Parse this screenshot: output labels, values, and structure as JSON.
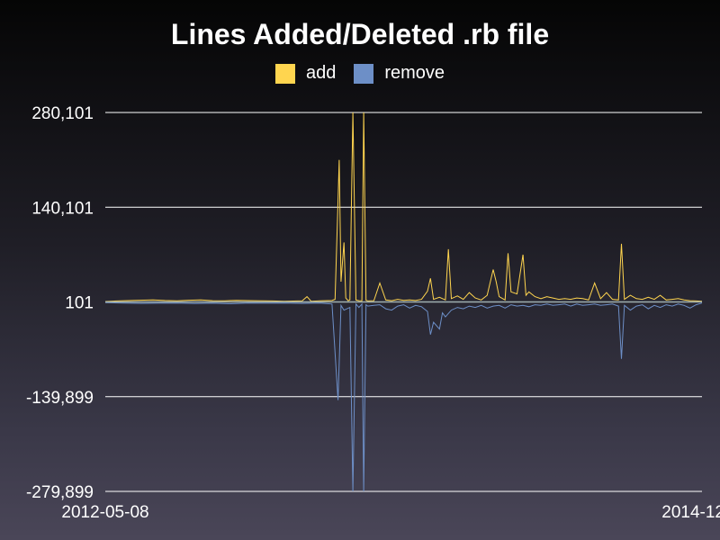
{
  "chart_data": {
    "type": "line",
    "title": "Lines Added/Deleted .rb file",
    "xlabel": "",
    "ylabel": "",
    "x_range": [
      "2012-05-08",
      "2014-12"
    ],
    "x_tick_labels": [
      "2012-05-08",
      "2014-12"
    ],
    "y_ticks": [
      280101,
      140101,
      101,
      -139899,
      -279899
    ],
    "y_tick_labels": [
      "280,101",
      "140,101",
      "101",
      "-139,899",
      "-279,899"
    ],
    "ylim": [
      -279899,
      280101
    ],
    "grid": true,
    "legend_position": "top-center",
    "series": [
      {
        "name": "add",
        "color": "#ffd54f",
        "points": [
          [
            0.0,
            800
          ],
          [
            0.02,
            1500
          ],
          [
            0.05,
            2400
          ],
          [
            0.08,
            3000
          ],
          [
            0.1,
            2200
          ],
          [
            0.12,
            1800
          ],
          [
            0.14,
            2600
          ],
          [
            0.16,
            3200
          ],
          [
            0.18,
            2000
          ],
          [
            0.2,
            1800
          ],
          [
            0.22,
            2500
          ],
          [
            0.25,
            2000
          ],
          [
            0.28,
            1500
          ],
          [
            0.3,
            1200
          ],
          [
            0.33,
            1800
          ],
          [
            0.338,
            8000
          ],
          [
            0.345,
            1200
          ],
          [
            0.36,
            1800
          ],
          [
            0.38,
            2200
          ],
          [
            0.385,
            4000
          ],
          [
            0.39,
            150000
          ],
          [
            0.392,
            210000
          ],
          [
            0.395,
            30000
          ],
          [
            0.4,
            88000
          ],
          [
            0.403,
            6000
          ],
          [
            0.407,
            2000
          ],
          [
            0.41,
            3000
          ],
          [
            0.415,
            280101
          ],
          [
            0.42,
            3000
          ],
          [
            0.425,
            2000
          ],
          [
            0.43,
            1800
          ],
          [
            0.433,
            280101
          ],
          [
            0.437,
            2500
          ],
          [
            0.44,
            1500
          ],
          [
            0.45,
            2000
          ],
          [
            0.46,
            28000
          ],
          [
            0.47,
            3000
          ],
          [
            0.48,
            2000
          ],
          [
            0.49,
            4000
          ],
          [
            0.5,
            2500
          ],
          [
            0.51,
            3000
          ],
          [
            0.52,
            2200
          ],
          [
            0.53,
            4000
          ],
          [
            0.54,
            16000
          ],
          [
            0.545,
            35000
          ],
          [
            0.55,
            4000
          ],
          [
            0.56,
            7000
          ],
          [
            0.57,
            3000
          ],
          [
            0.575,
            78000
          ],
          [
            0.58,
            5000
          ],
          [
            0.59,
            9000
          ],
          [
            0.6,
            4000
          ],
          [
            0.61,
            14000
          ],
          [
            0.62,
            6000
          ],
          [
            0.63,
            3000
          ],
          [
            0.64,
            10000
          ],
          [
            0.65,
            48000
          ],
          [
            0.655,
            30000
          ],
          [
            0.66,
            8000
          ],
          [
            0.67,
            3000
          ],
          [
            0.675,
            72000
          ],
          [
            0.68,
            15000
          ],
          [
            0.69,
            12000
          ],
          [
            0.7,
            70000
          ],
          [
            0.705,
            10000
          ],
          [
            0.71,
            15000
          ],
          [
            0.72,
            8000
          ],
          [
            0.73,
            5000
          ],
          [
            0.74,
            8000
          ],
          [
            0.75,
            6000
          ],
          [
            0.76,
            4000
          ],
          [
            0.77,
            5000
          ],
          [
            0.78,
            4000
          ],
          [
            0.79,
            6000
          ],
          [
            0.8,
            5000
          ],
          [
            0.81,
            3000
          ],
          [
            0.82,
            28000
          ],
          [
            0.83,
            5000
          ],
          [
            0.84,
            14000
          ],
          [
            0.85,
            4000
          ],
          [
            0.86,
            3000
          ],
          [
            0.865,
            86000
          ],
          [
            0.87,
            4000
          ],
          [
            0.88,
            10000
          ],
          [
            0.89,
            5000
          ],
          [
            0.9,
            4000
          ],
          [
            0.91,
            7000
          ],
          [
            0.92,
            4000
          ],
          [
            0.93,
            10000
          ],
          [
            0.94,
            3000
          ],
          [
            0.95,
            4000
          ],
          [
            0.96,
            5000
          ],
          [
            0.97,
            3000
          ],
          [
            0.98,
            2000
          ],
          [
            0.99,
            1500
          ],
          [
            1.0,
            1200
          ]
        ]
      },
      {
        "name": "remove",
        "color": "#6d8fc7",
        "points": [
          [
            0.0,
            -800
          ],
          [
            0.03,
            -1500
          ],
          [
            0.06,
            -2000
          ],
          [
            0.09,
            -1800
          ],
          [
            0.12,
            -1500
          ],
          [
            0.15,
            -2200
          ],
          [
            0.18,
            -1800
          ],
          [
            0.21,
            -2500
          ],
          [
            0.24,
            -1500
          ],
          [
            0.27,
            -1800
          ],
          [
            0.3,
            -1500
          ],
          [
            0.33,
            -2000
          ],
          [
            0.36,
            -1500
          ],
          [
            0.38,
            -3000
          ],
          [
            0.39,
            -145000
          ],
          [
            0.395,
            -5000
          ],
          [
            0.4,
            -12000
          ],
          [
            0.41,
            -8000
          ],
          [
            0.415,
            -279899
          ],
          [
            0.42,
            -3000
          ],
          [
            0.425,
            -8000
          ],
          [
            0.43,
            -3000
          ],
          [
            0.433,
            -279899
          ],
          [
            0.437,
            -4000
          ],
          [
            0.44,
            -6000
          ],
          [
            0.45,
            -5000
          ],
          [
            0.46,
            -4000
          ],
          [
            0.47,
            -10000
          ],
          [
            0.48,
            -12000
          ],
          [
            0.49,
            -6000
          ],
          [
            0.5,
            -4000
          ],
          [
            0.51,
            -9000
          ],
          [
            0.52,
            -5000
          ],
          [
            0.53,
            -7000
          ],
          [
            0.54,
            -14000
          ],
          [
            0.545,
            -48000
          ],
          [
            0.55,
            -30000
          ],
          [
            0.56,
            -40000
          ],
          [
            0.565,
            -16000
          ],
          [
            0.57,
            -22000
          ],
          [
            0.58,
            -12000
          ],
          [
            0.59,
            -8000
          ],
          [
            0.6,
            -10000
          ],
          [
            0.61,
            -6000
          ],
          [
            0.62,
            -8000
          ],
          [
            0.63,
            -5000
          ],
          [
            0.64,
            -9000
          ],
          [
            0.65,
            -6000
          ],
          [
            0.66,
            -5000
          ],
          [
            0.67,
            -9000
          ],
          [
            0.68,
            -4000
          ],
          [
            0.69,
            -6000
          ],
          [
            0.7,
            -5000
          ],
          [
            0.71,
            -7000
          ],
          [
            0.72,
            -4000
          ],
          [
            0.73,
            -5000
          ],
          [
            0.74,
            -3000
          ],
          [
            0.75,
            -5000
          ],
          [
            0.76,
            -4000
          ],
          [
            0.77,
            -3000
          ],
          [
            0.78,
            -6000
          ],
          [
            0.79,
            -3000
          ],
          [
            0.8,
            -5000
          ],
          [
            0.81,
            -4000
          ],
          [
            0.82,
            -3000
          ],
          [
            0.83,
            -5000
          ],
          [
            0.84,
            -4000
          ],
          [
            0.85,
            -3000
          ],
          [
            0.86,
            -6000
          ],
          [
            0.865,
            -84000
          ],
          [
            0.87,
            -5000
          ],
          [
            0.88,
            -12000
          ],
          [
            0.89,
            -6000
          ],
          [
            0.9,
            -4000
          ],
          [
            0.91,
            -10000
          ],
          [
            0.92,
            -5000
          ],
          [
            0.93,
            -8000
          ],
          [
            0.94,
            -4000
          ],
          [
            0.95,
            -6000
          ],
          [
            0.96,
            -3000
          ],
          [
            0.97,
            -5000
          ],
          [
            0.98,
            -9000
          ],
          [
            0.99,
            -4000
          ],
          [
            1.0,
            -1500
          ]
        ]
      }
    ]
  }
}
